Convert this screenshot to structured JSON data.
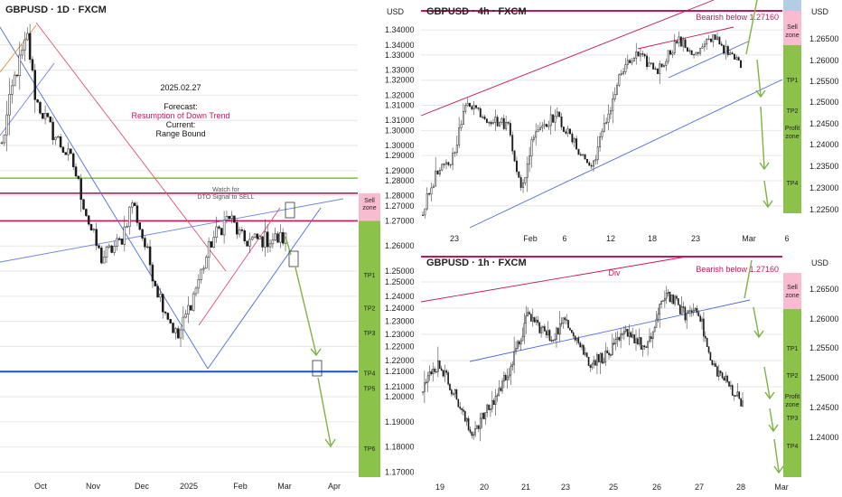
{
  "chart_data": [
    {
      "type": "candlestick",
      "title": "GBPUSD · 1D · FXCM",
      "currency": "USD",
      "y_ticks": [
        "1.34000",
        "1.33000",
        "1.32000",
        "1.31000",
        "1.30000",
        "1.29000",
        "1.28000",
        "1.27000",
        "1.26000",
        "1.25000",
        "1.24000",
        "1.23000",
        "1.22000",
        "1.21000",
        "1.20000",
        "1.19000",
        "1.18000",
        "1.17000"
      ],
      "ylim": [
        1.168,
        1.35
      ],
      "x_ticks": [
        "Oct",
        "Nov",
        "Dec",
        "2025",
        "Feb",
        "Mar",
        "Apr"
      ],
      "annotations": {
        "date": "2025.02.27",
        "forecast_label": "Forecast:",
        "forecast": "Resumption of Down Trend",
        "current_label": "Current:",
        "current": "Range Bound",
        "watch": [
          "Watch for",
          "DTO Signal to SELL"
        ]
      },
      "horizontal_levels": [
        {
          "price": 1.287,
          "color": "#8bc34a"
        },
        {
          "price": 1.281,
          "color": "#c2185b"
        },
        {
          "price": 1.27,
          "color": "#c2185b"
        },
        {
          "price": 1.21,
          "color": "#1e4fd8"
        }
      ],
      "zones": [
        {
          "label": "Sell zone",
          "top": 1.281,
          "bottom": 1.27,
          "color": "#f8bbd0"
        },
        {
          "label": "TP1",
          "price": 1.2485
        },
        {
          "label": "TP2",
          "price": 1.2355
        },
        {
          "label": "TP3",
          "price": 1.2255
        },
        {
          "label": "TP4",
          "price": 1.2095
        },
        {
          "label": "TP5",
          "price": 1.2035
        },
        {
          "label": "TP6",
          "price": 1.1795
        }
      ]
    },
    {
      "type": "candlestick",
      "title": "GBPUSD · 4h · FXCM",
      "currency": "USD",
      "y_ticks": [
        "1.34000",
        "1.33000",
        "1.32000",
        "1.31000",
        "1.30000",
        "1.29000",
        "1.28000",
        "1.27000"
      ],
      "ylim": [
        1.262,
        1.344
      ],
      "right_ticks": [
        "1.26500",
        "1.26000",
        "1.25500",
        "1.25000",
        "1.24500",
        "1.24000",
        "1.23500",
        "1.23000",
        "1.22500"
      ],
      "x_ticks": [
        "23",
        "Feb",
        "6",
        "12",
        "18",
        "23",
        "Mar",
        "6"
      ],
      "annotations": {
        "bearish": "Bearish below 1.27160"
      },
      "zones": [
        {
          "label": "Sell zone"
        },
        {
          "label": "TP1"
        },
        {
          "label": "TP2"
        },
        {
          "label": "Profit zone"
        },
        {
          "label": "TP4"
        }
      ]
    },
    {
      "type": "candlestick",
      "title": "GBPUSD · 1h · FXCM",
      "currency": "USD",
      "y_ticks": [
        "1.25000",
        "1.24000",
        "1.23000",
        "1.22000",
        "1.21000"
      ],
      "right_ticks": [
        "1.26500",
        "1.26000",
        "1.25500",
        "1.25000",
        "1.24500",
        "1.24000"
      ],
      "x_ticks": [
        "19",
        "20",
        "21",
        "23",
        "25",
        "26",
        "27",
        "28",
        "Mar"
      ],
      "annotations": {
        "bearish": "Bearish below 1.27160",
        "div": "Div"
      },
      "zones": [
        {
          "label": "Sell zone"
        },
        {
          "label": "TP1"
        },
        {
          "label": "TP2"
        },
        {
          "label": "Profit zone"
        },
        {
          "label": "TP3"
        },
        {
          "label": "TP4"
        }
      ]
    }
  ]
}
